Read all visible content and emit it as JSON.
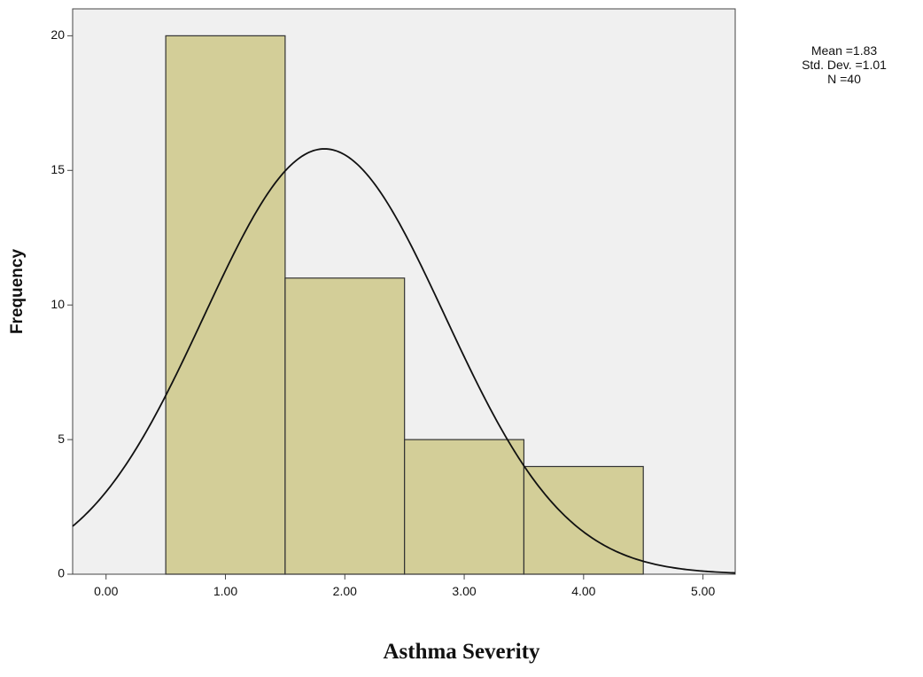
{
  "chart_data": {
    "type": "histogram",
    "x_label": "Asthma Severity",
    "y_label": "Frequency",
    "bins": [
      0.5,
      1.5,
      2.5,
      3.5,
      4.5
    ],
    "counts": [
      20,
      11,
      5,
      4
    ],
    "color": "#d3ce98",
    "xlim": [
      -0.28,
      5.27
    ],
    "xticks": [
      {
        "value": 0,
        "label": "0.00"
      },
      {
        "value": 1,
        "label": "1.00"
      },
      {
        "value": 2,
        "label": "2.00"
      },
      {
        "value": 3,
        "label": "3.00"
      },
      {
        "value": 4,
        "label": "4.00"
      },
      {
        "value": 5,
        "label": "5.00"
      }
    ],
    "ylim": [
      0,
      21
    ],
    "yticks": [
      0,
      5,
      10,
      15,
      20
    ],
    "normal_curve": {
      "mean": 1.83,
      "sd": 1.01,
      "n": 40
    },
    "annotations": [
      "Mean =1.83",
      "Std. Dev. =1.01",
      "N =40"
    ]
  }
}
